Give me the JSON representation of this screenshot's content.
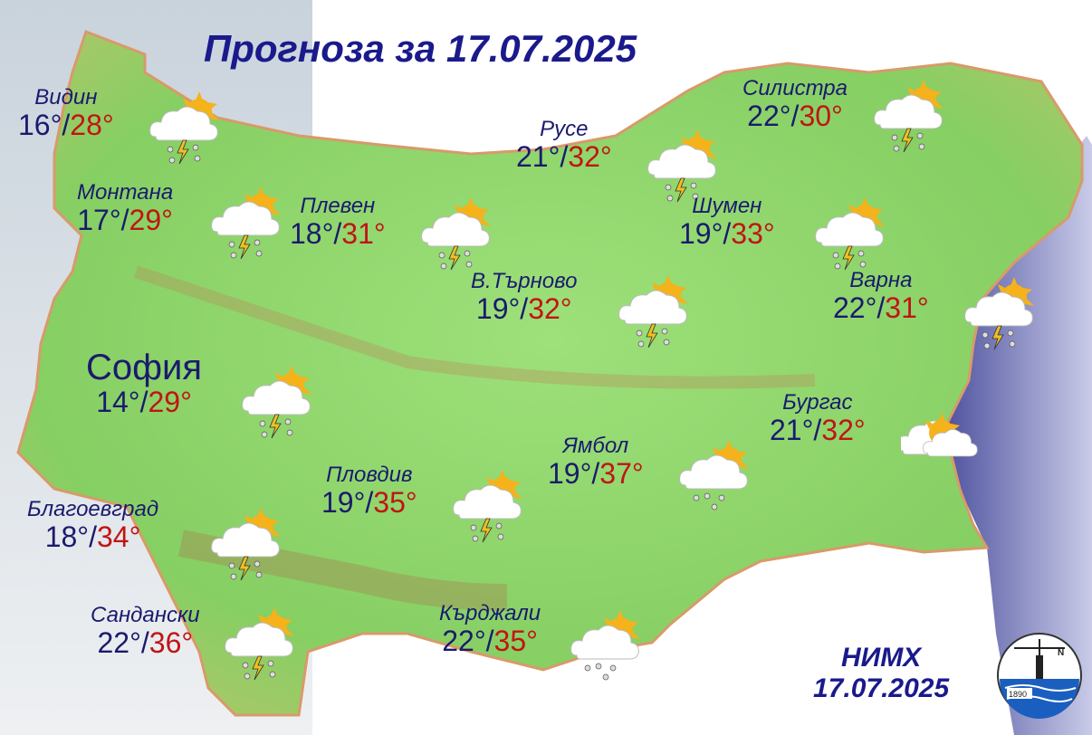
{
  "title": "Прогноза за 17.07.2025",
  "colors": {
    "title": "#1a1a8c",
    "min_temp": "#1a1a6e",
    "max_temp": "#c01515",
    "land": "#8fd46a",
    "sea": "#3a3f9a"
  },
  "cities": [
    {
      "name": "Видин",
      "min": "16°",
      "max": "28°",
      "icon": "thunderstorm-icon"
    },
    {
      "name": "Монтана",
      "min": "17°",
      "max": "29°",
      "icon": "thunderstorm-icon"
    },
    {
      "name": "Плевен",
      "min": "18°",
      "max": "31°",
      "icon": "thunderstorm-icon"
    },
    {
      "name": "Русе",
      "min": "21°",
      "max": "32°",
      "icon": "thunderstorm-icon"
    },
    {
      "name": "Силистра",
      "min": "22°",
      "max": "30°",
      "icon": "thunderstorm-icon"
    },
    {
      "name": "Шумен",
      "min": "19°",
      "max": "33°",
      "icon": "thunderstorm-icon"
    },
    {
      "name": "В.Търново",
      "min": "19°",
      "max": "32°",
      "icon": "thunderstorm-icon"
    },
    {
      "name": "Варна",
      "min": "22°",
      "max": "31°",
      "icon": "thunderstorm-icon"
    },
    {
      "name": "София",
      "min": "14°",
      "max": "29°",
      "icon": "thunderstorm-icon"
    },
    {
      "name": "Бургас",
      "min": "21°",
      "max": "32°",
      "icon": "partly-cloudy-icon"
    },
    {
      "name": "Ямбол",
      "min": "19°",
      "max": "37°",
      "icon": "rain-showers-icon"
    },
    {
      "name": "Пловдив",
      "min": "19°",
      "max": "35°",
      "icon": "thunderstorm-icon"
    },
    {
      "name": "Благоевград",
      "min": "18°",
      "max": "34°",
      "icon": "thunderstorm-icon"
    },
    {
      "name": "Сандански",
      "min": "22°",
      "max": "36°",
      "icon": "thunderstorm-icon"
    },
    {
      "name": "Кърджали",
      "min": "22°",
      "max": "35°",
      "icon": "rain-showers-icon"
    }
  ],
  "footer": {
    "org": "НИМХ",
    "date": "17.07.2025"
  },
  "logo": {
    "year": "1890",
    "north": "N"
  }
}
